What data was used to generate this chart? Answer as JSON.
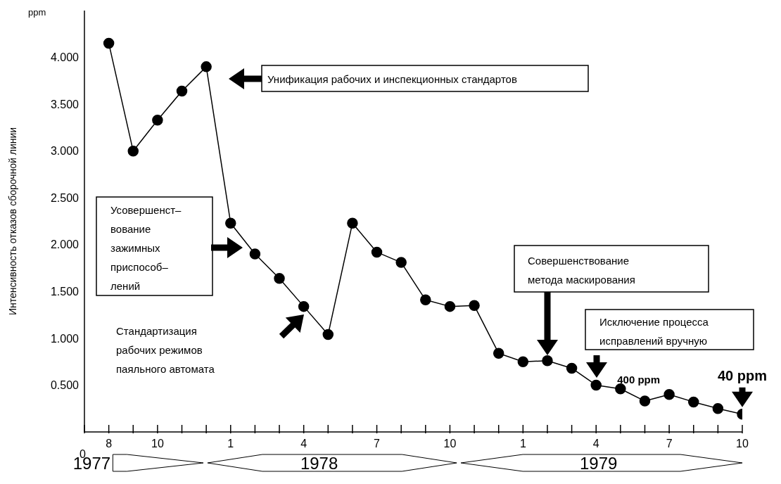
{
  "chart_data": {
    "type": "line",
    "ylabel": "Интенсивность отказов сборочной линии",
    "x": [
      "1977-08",
      "1977-09",
      "1977-10",
      "1977-11",
      "1977-12",
      "1978-01",
      "1978-02",
      "1978-03",
      "1978-04",
      "1978-05",
      "1978-06",
      "1978-07",
      "1978-08",
      "1978-09",
      "1978-10",
      "1978-11",
      "1978-12",
      "1979-01",
      "1979-02",
      "1979-03",
      "1979-04",
      "1979-05",
      "1979-06",
      "1979-07",
      "1979-08",
      "1979-09",
      "1979-10"
    ],
    "series": [
      {
        "color": "#000000",
        "values": [
          4.15,
          3.0,
          3.33,
          3.64,
          3.9,
          2.23,
          1.9,
          1.64,
          1.34,
          1.04,
          2.23,
          1.92,
          1.81,
          1.41,
          1.34,
          1.35,
          0.84,
          0.75,
          0.76,
          0.68,
          0.5,
          0.46,
          0.33,
          0.4,
          0.32,
          0.25,
          0.19
        ]
      }
    ],
    "xlim": [
      "1977-07",
      "1979-10"
    ],
    "xticks": [
      {
        "value": "1977-07",
        "label": null
      },
      {
        "value": "1977-08",
        "label": "8"
      },
      {
        "value": "1977-09",
        "label": null
      },
      {
        "value": "1977-10",
        "label": "10"
      },
      {
        "value": "1977-11",
        "label": null
      },
      {
        "value": "1977-12",
        "label": null
      },
      {
        "value": "1978-01",
        "label": "1"
      },
      {
        "value": "1978-02",
        "label": null
      },
      {
        "value": "1978-03",
        "label": null
      },
      {
        "value": "1978-04",
        "label": "4"
      },
      {
        "value": "1978-05",
        "label": null
      },
      {
        "value": "1978-06",
        "label": null
      },
      {
        "value": "1978-07",
        "label": "7"
      },
      {
        "value": "1978-08",
        "label": null
      },
      {
        "value": "1978-09",
        "label": null
      },
      {
        "value": "1978-10",
        "label": "10"
      },
      {
        "value": "1978-11",
        "label": null
      },
      {
        "value": "1978-12",
        "label": null
      },
      {
        "value": "1979-01",
        "label": "1"
      },
      {
        "value": "1979-02",
        "label": null
      },
      {
        "value": "1979-03",
        "label": null
      },
      {
        "value": "1979-04",
        "label": "4"
      },
      {
        "value": "1979-05",
        "label": null
      },
      {
        "value": "1979-06",
        "label": null
      },
      {
        "value": "1979-07",
        "label": "7"
      },
      {
        "value": "1979-08",
        "label": null
      },
      {
        "value": "1979-09",
        "label": null
      },
      {
        "value": "1979-10",
        "label": "10"
      }
    ],
    "x2lim": [
      "1977-07",
      "1979-10"
    ],
    "x2ticks": [
      {
        "value": "1977-07-10",
        "label": "1977"
      },
      {
        "value": "1978-04-20",
        "label": "1978"
      },
      {
        "value": "1979-04-04",
        "label": "1979"
      }
    ],
    "ylim": [
      0,
      4.5
    ],
    "yticks": [
      {
        "value": 0.5,
        "label": "0.500"
      },
      {
        "value": 1,
        "label": "1.000"
      },
      {
        "value": 1.5,
        "label": "1.500"
      },
      {
        "value": 2,
        "label": "2.000"
      },
      {
        "value": 2.5,
        "label": "2.500"
      },
      {
        "value": 3,
        "label": "3.000"
      },
      {
        "value": 3.5,
        "label": "3.500"
      },
      {
        "value": 4,
        "label": "4.000"
      }
    ],
    "marker": "circle",
    "line_style": "solid",
    "annotations": [
      "ppm",
      "0",
      "Унификация рабочих и инспекционных стандартов",
      "Усовершенст–\nвование\nзажимных\nприспособ–\nлений",
      "Стандартизация\nрабочих режимов\nпаяльного автомата",
      "Совершенствование\nметода маскирования",
      "Исключение процесса\nисправлений вручную",
      {
        "text": "400 ppm",
        "x": "1979-04",
        "y": 0.5
      },
      {
        "text": "40 ppm",
        "x": "1979-10",
        "y": 0.19
      }
    ]
  }
}
